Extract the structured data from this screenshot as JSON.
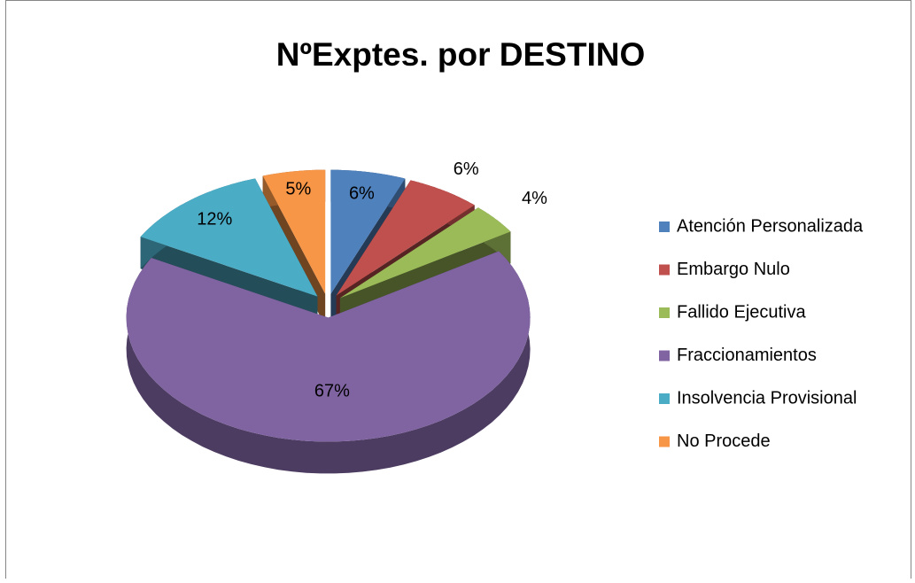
{
  "chart_data": {
    "type": "pie",
    "title": "NºExptes. por DESTINO",
    "categories": [
      "Atención Personalizada",
      "Embargo Nulo",
      "Fallido Ejecutiva",
      "Fraccionamientos",
      "Insolvencia Provisional",
      "No Procede"
    ],
    "values": [
      6,
      6,
      4,
      67,
      12,
      5
    ],
    "value_labels": [
      "6%",
      "6%",
      "4%",
      "67%",
      "12%",
      "5%"
    ],
    "colors": [
      "#4f81bd",
      "#c0504d",
      "#9bbb59",
      "#8064a2",
      "#4bacc6",
      "#f79646"
    ],
    "legend": "right"
  }
}
